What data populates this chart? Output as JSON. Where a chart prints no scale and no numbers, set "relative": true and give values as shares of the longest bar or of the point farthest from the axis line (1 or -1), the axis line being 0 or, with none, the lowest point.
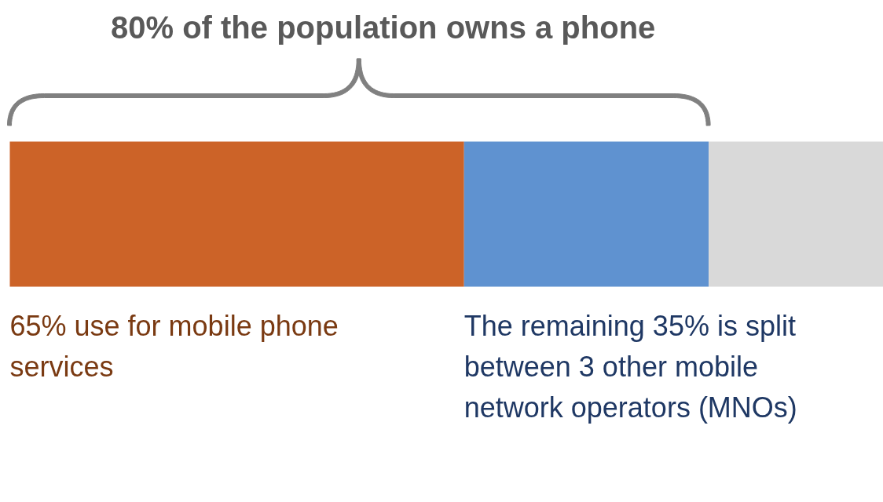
{
  "chart_data": {
    "type": "bar",
    "orientation": "horizontal",
    "stacked": true,
    "relative": true,
    "title": "80% of the population owns a phone",
    "categories": [
      null
    ],
    "series": [
      {
        "color": "#cc6328",
        "values": [
          0.52
        ]
      },
      {
        "color": "#5f92d0",
        "values": [
          0.28
        ]
      },
      {
        "color": "#d9d9d9",
        "values": [
          0.2
        ]
      }
    ],
    "annotations": [
      "65% use for mobile phone services",
      "The remaining 35% is split between 3 other mobile network operators (MNOs)"
    ]
  }
}
